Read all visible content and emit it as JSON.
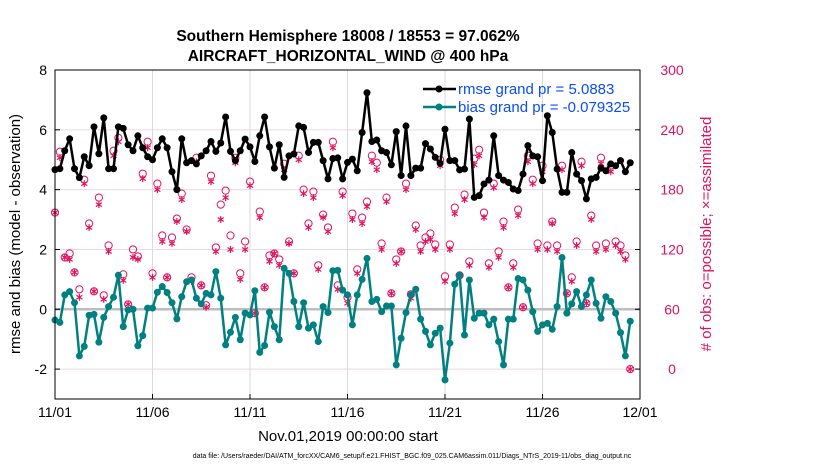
{
  "chart_data": {
    "type": "line",
    "title": [
      "Southern Hemisphere 18008 / 18553 = 97.062%",
      "AIRCRAFT_HORIZONTAL_WIND @ 400 hPa"
    ],
    "xlabel": "Nov.01,2019 00:00:00 start",
    "ylabel": "rmse and bias (model - observation)",
    "ylabel_right": "# of obs: o=possible; ×=assimilated",
    "footer": "data file: /Users/raeder/DAI/ATM_forcXX/CAM6_setup/f.e21.FHIST_BGC.f09_025.CAM6assim.011/Diags_NTrS_2019-11/obs_diag_output.nc",
    "x_unit": "days since 11/01, 6-hourly",
    "x_step_days": 0.25,
    "xlim": [
      0,
      30
    ],
    "ylim": [
      -3,
      8
    ],
    "ylim_right": [
      -30,
      300
    ],
    "x_ticks": [
      {
        "day": 0,
        "label": "11/01"
      },
      {
        "day": 5,
        "label": "11/06"
      },
      {
        "day": 10,
        "label": "11/11"
      },
      {
        "day": 15,
        "label": "11/16"
      },
      {
        "day": 20,
        "label": "11/21"
      },
      {
        "day": 25,
        "label": "11/26"
      },
      {
        "day": 30,
        "label": "12/01"
      }
    ],
    "y_ticks": [
      "-2",
      "0",
      "2",
      "4",
      "6",
      "8"
    ],
    "y_ticks_right": [
      "0",
      "60",
      "120",
      "180",
      "240",
      "300"
    ],
    "legend": {
      "placement": "top-right",
      "entries": [
        "rmse grand pr = 5.0883",
        "bias grand pr = -0.079325"
      ]
    },
    "colors": {
      "rmse": "#000000",
      "bias": "#008080",
      "counts": "#e0125f",
      "legend_text": "#0a4cff",
      "zero_line": "#bdbdbd",
      "grid": "#f0d6e0"
    },
    "series": [
      {
        "name": "rmse",
        "axis": "left",
        "values": [
          4.67,
          4.7,
          5.3,
          5.7,
          4.7,
          4.4,
          5.1,
          4.8,
          6.1,
          5.2,
          6.4,
          4.7,
          4.7,
          6.1,
          6.05,
          5.5,
          5.3,
          5.8,
          5.4,
          5.1,
          5.0,
          5.4,
          5.7,
          5.4,
          4.6,
          4.0,
          5.7,
          4.9,
          4.97,
          4.86,
          5.13,
          5.3,
          5.61,
          5.28,
          5.56,
          6.43,
          5.28,
          4.97,
          5.3,
          5.69,
          5.43,
          4.94,
          5.8,
          6.43,
          5.43,
          4.72,
          5.5,
          4.41,
          5.13,
          5.19,
          6.13,
          6.08,
          5.24,
          5.58,
          5.58,
          4.97,
          4.36,
          5.04,
          5.06,
          4.36,
          4.91,
          5.02,
          4.63,
          5.91,
          7.24,
          5.61,
          5.66,
          5.3,
          5.24,
          4.83,
          5.94,
          4.47,
          6.13,
          4.47,
          4.72,
          4.72,
          5.54,
          5.36,
          5.08,
          4.88,
          6.02,
          4.97,
          4.97,
          4.66,
          4.69,
          6.36,
          3.74,
          3.8,
          4.19,
          4.32,
          5.8,
          4.47,
          4.32,
          4.24,
          4.02,
          3.97,
          4.52,
          5.47,
          5.13,
          5.1,
          4.3,
          6.47,
          5.91,
          4.69,
          3.91,
          3.91,
          5.24,
          4.52,
          4.3,
          3.69,
          4.36,
          4.41,
          4.72,
          4.63,
          4.86,
          4.8,
          4.97,
          4.6,
          4.9
        ]
      },
      {
        "name": "bias",
        "axis": "left",
        "values": [
          -0.36,
          -0.44,
          0.48,
          0.59,
          0.22,
          -1.56,
          -1.24,
          -0.2,
          -0.17,
          -1.1,
          -0.27,
          0.09,
          0.4,
          1.14,
          -0.58,
          -0.02,
          0,
          -1.22,
          -0.88,
          0.04,
          0.04,
          0.57,
          0.76,
          0.56,
          0.22,
          -0.32,
          0.42,
          0.92,
          0.98,
          0.37,
          0.18,
          0.53,
          0.48,
          1.26,
          0.37,
          -1.19,
          -0.77,
          -0.27,
          -1.02,
          -0.13,
          -0.19,
          0.62,
          -1.44,
          -1.21,
          -0.1,
          -0.58,
          -1.02,
          1.37,
          1.2,
          0.26,
          -0.58,
          0.22,
          -0.63,
          -0.52,
          -1.08,
          0.09,
          -0.11,
          1.29,
          1.3,
          0.64,
          0.48,
          -0.52,
          0.48,
          1.0,
          1.7,
          0.26,
          0.33,
          -0.08,
          0.11,
          0.11,
          -1.86,
          -0.97,
          -0.11,
          0.48,
          0.67,
          -0.33,
          -0.74,
          -1.19,
          -0.8,
          -0.63,
          -2.36,
          -1.13,
          0.84,
          1.14,
          -0.86,
          0.98,
          -0.3,
          -0.13,
          -0.13,
          -0.52,
          -0.33,
          -1.08,
          -1.86,
          -0.33,
          -0.33,
          1.03,
          0.98,
          0.64,
          -0.08,
          -0.74,
          -0.52,
          -0.47,
          -0.67,
          0.09,
          1.73,
          -0.13,
          0.18,
          0.59,
          0.09,
          0.48,
          0.98,
          0.2,
          -0.3,
          0.42,
          0.26,
          -0.13,
          -0.78,
          -1.56,
          -0.4
        ]
      },
      {
        "name": "possible",
        "axis": "right",
        "marker": "o",
        "values": [
          157,
          218,
          112,
          116,
          97,
          80,
          190,
          146,
          78,
          172,
          74,
          124,
          219,
          232,
          95,
          65,
          120,
          113,
          196,
          228,
          96,
          186,
          134,
          92,
          132,
          151,
          176,
          140,
          92,
          212,
          84,
          64,
          194,
          122,
          165,
          179,
          134,
          212,
          96,
          128,
          188,
          56,
          158,
          82,
          114,
          116,
          110,
          206,
          128,
          96,
          214,
          180,
          146,
          178,
          104,
          155,
          142,
          228,
          84,
          178,
          72,
          156,
          100,
          152,
          168,
          214,
          207,
          126,
          172,
          76,
          110,
          118,
          186,
          75,
          144,
          124,
          132,
          136,
          125,
          210,
          93,
          125,
          162,
          94,
          175,
          108,
          211,
          220,
          157,
          106,
          186,
          118,
          148,
          82,
          106,
          160,
          62,
          214,
          190,
          126,
          204,
          124,
          148,
          124,
          204,
          76,
          92,
          128,
          208,
          66,
          154,
          124,
          212,
          126,
          204,
          128,
          124,
          114,
          0
        ]
      },
      {
        "name": "assimilated",
        "axis": "right",
        "marker": "*",
        "values": [
          157,
          212,
          112,
          110,
          97,
          72,
          186,
          142,
          78,
          165,
          70,
          118,
          214,
          228,
          89,
          65,
          112,
          110,
          191,
          222,
          92,
          180,
          128,
          92,
          126,
          148,
          170,
          138,
          88,
          208,
          84,
          62,
          188,
          118,
          150,
          172,
          120,
          207,
          90,
          120,
          184,
          56,
          152,
          82,
          108,
          116,
          104,
          200,
          126,
          96,
          210,
          176,
          142,
          172,
          100,
          152,
          138,
          222,
          80,
          174,
          66,
          150,
          96,
          146,
          163,
          208,
          200,
          120,
          168,
          76,
          106,
          118,
          180,
          71,
          140,
          118,
          128,
          130,
          120,
          204,
          88,
          120,
          156,
          94,
          170,
          104,
          205,
          214,
          152,
          102,
          182,
          112,
          142,
          82,
          102,
          154,
          62,
          208,
          186,
          120,
          198,
          120,
          146,
          118,
          200,
          76,
          88,
          124,
          204,
          66,
          150,
          118,
          206,
          120,
          198,
          124,
          118,
          110,
          0
        ]
      }
    ]
  }
}
